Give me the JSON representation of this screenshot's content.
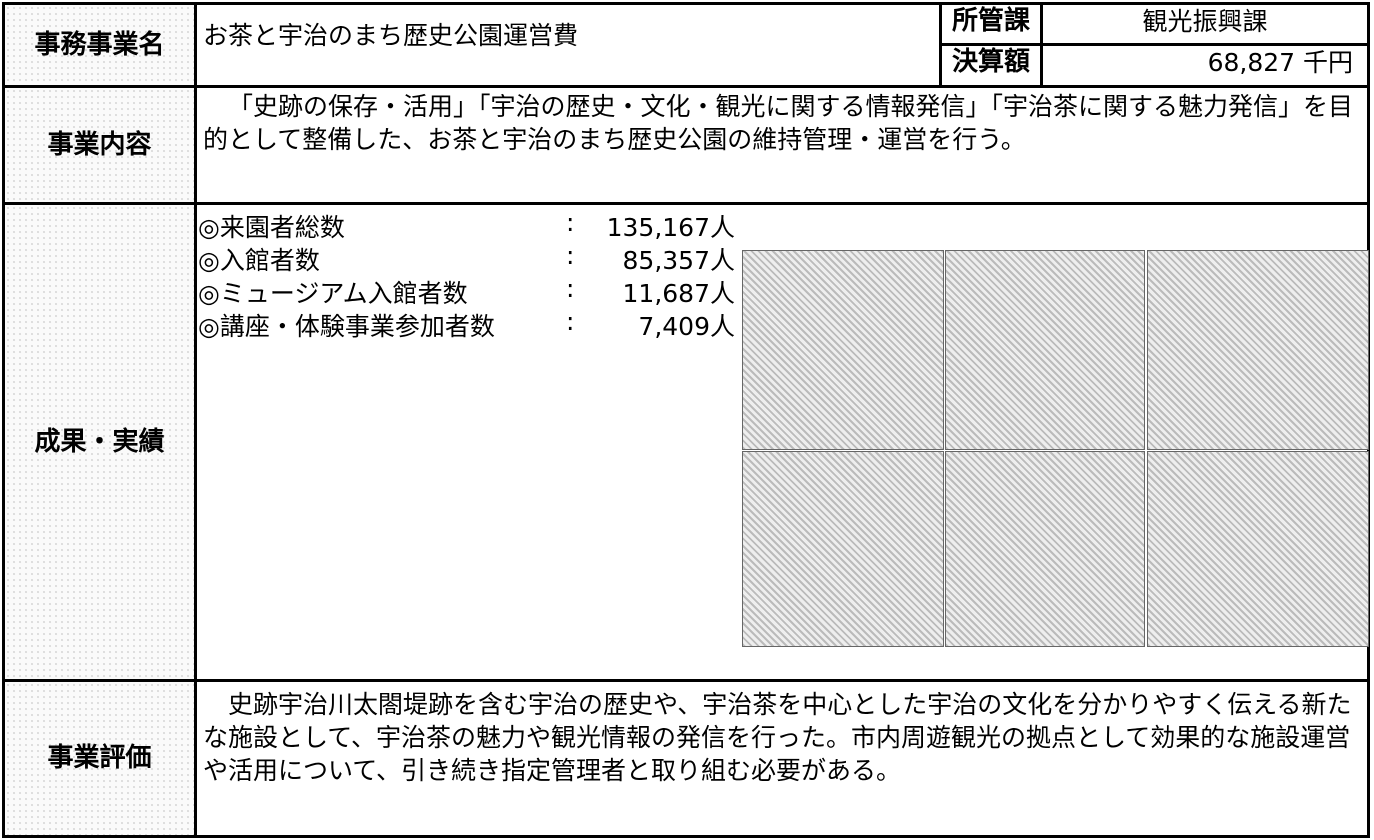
{
  "header": {
    "name_label": "事務事業名",
    "name": "お茶と宇治のまち歴史公園運営費",
    "dept_label": "所管課",
    "dept": "観光振興課",
    "amount_label": "決算額",
    "amount": "68,827 千円"
  },
  "content": {
    "label": "事業内容",
    "text": "「史跡の保存・活用」「宇治の歴史・文化・観光に関する情報発信」「宇治茶に関する魅力発信」を目的として整備した、お茶と宇治のまち歴史公園の維持管理・運営を行う。"
  },
  "results": {
    "label": "成果・実績",
    "separator": ":",
    "items": [
      {
        "label": "◎来園者総数",
        "value": "135,167人"
      },
      {
        "label": "◎入館者数",
        "value": "85,357人"
      },
      {
        "label": "◎ミュージアム入館者数",
        "value": "11,687人"
      },
      {
        "label": "◎講座・体験事業参加者数",
        "value": "7,409人"
      }
    ]
  },
  "evaluation": {
    "label": "事業評価",
    "text": "史跡宇治川太閤堤跡を含む宇治の歴史や、宇治茶を中心とした宇治の文化を分かりやすく伝える新たな施設として、宇治茶の魅力や観光情報の発信を行った。市内周遊観光の拠点として効果的な施設運営や活用について、引き続き指定管理者と取り組む必要がある。"
  }
}
